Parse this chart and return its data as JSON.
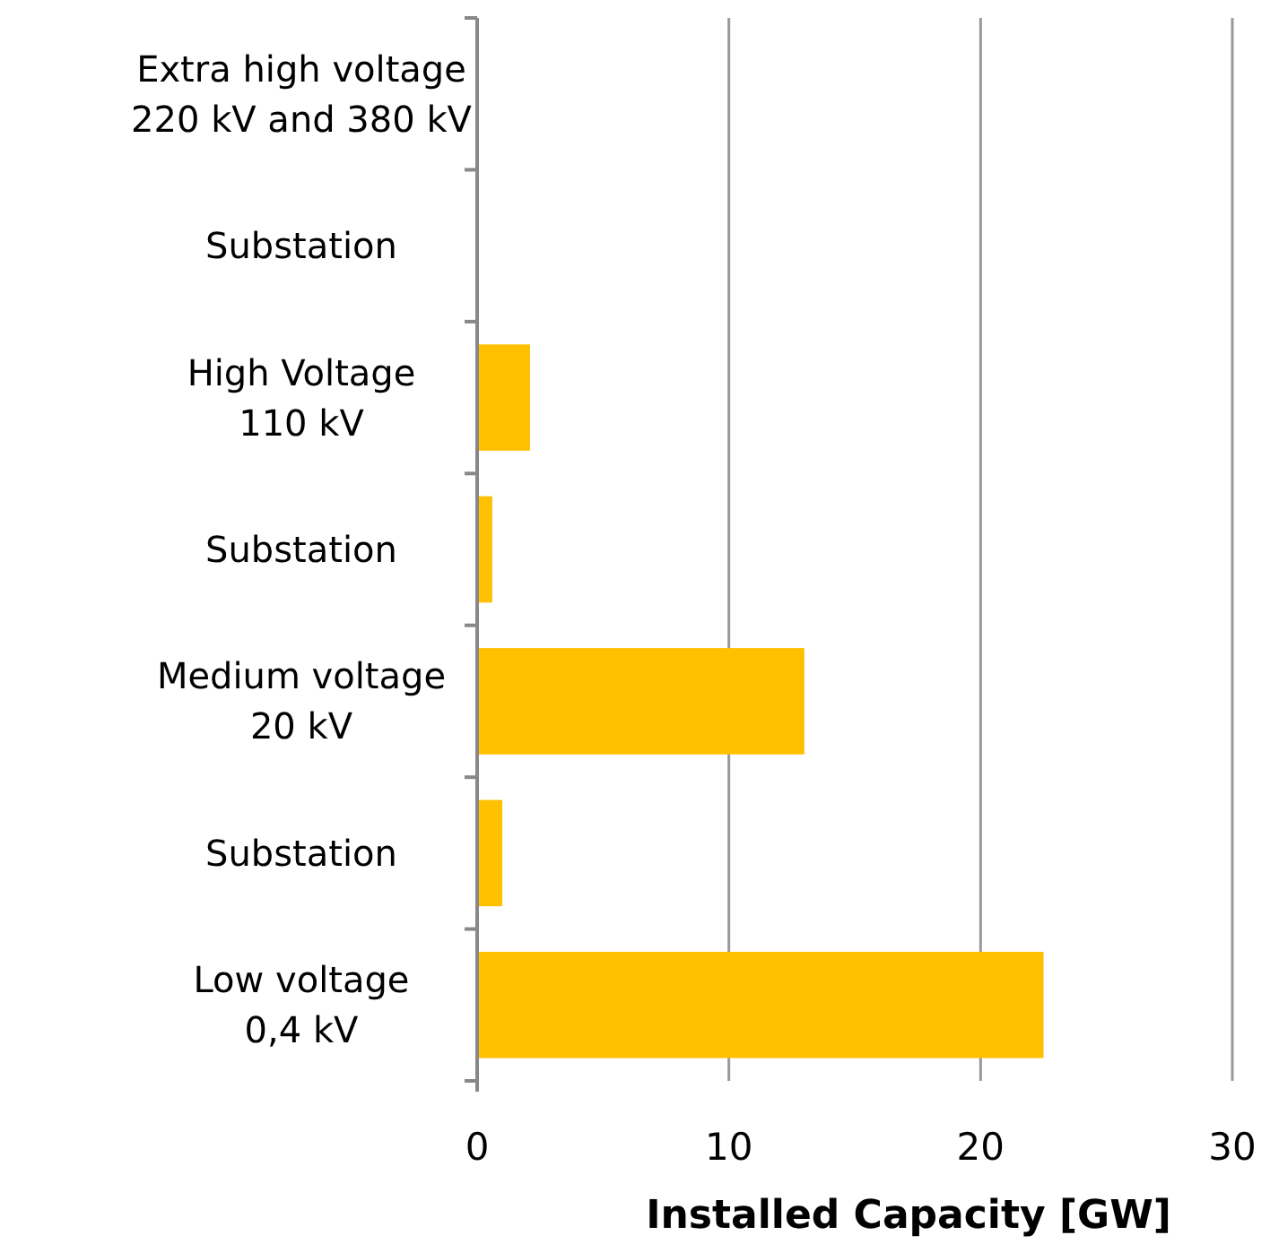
{
  "chart_data": {
    "type": "bar",
    "orientation": "horizontal",
    "xlabel": "Installed Capacity [GW]",
    "categories": [
      "Extra high voltage\n220 kV and 380 kV",
      "Substation",
      "High Voltage\n110 kV",
      "Substation",
      "Medium voltage\n20 kV",
      "Substation",
      "Low voltage\n0,4 kV"
    ],
    "values": [
      0,
      0,
      2.1,
      0.6,
      13.0,
      1.0,
      22.5
    ],
    "color": "#ffc000",
    "xlim": [
      0,
      30
    ],
    "xticks": [
      0,
      10,
      20,
      30
    ],
    "grid": "x"
  }
}
